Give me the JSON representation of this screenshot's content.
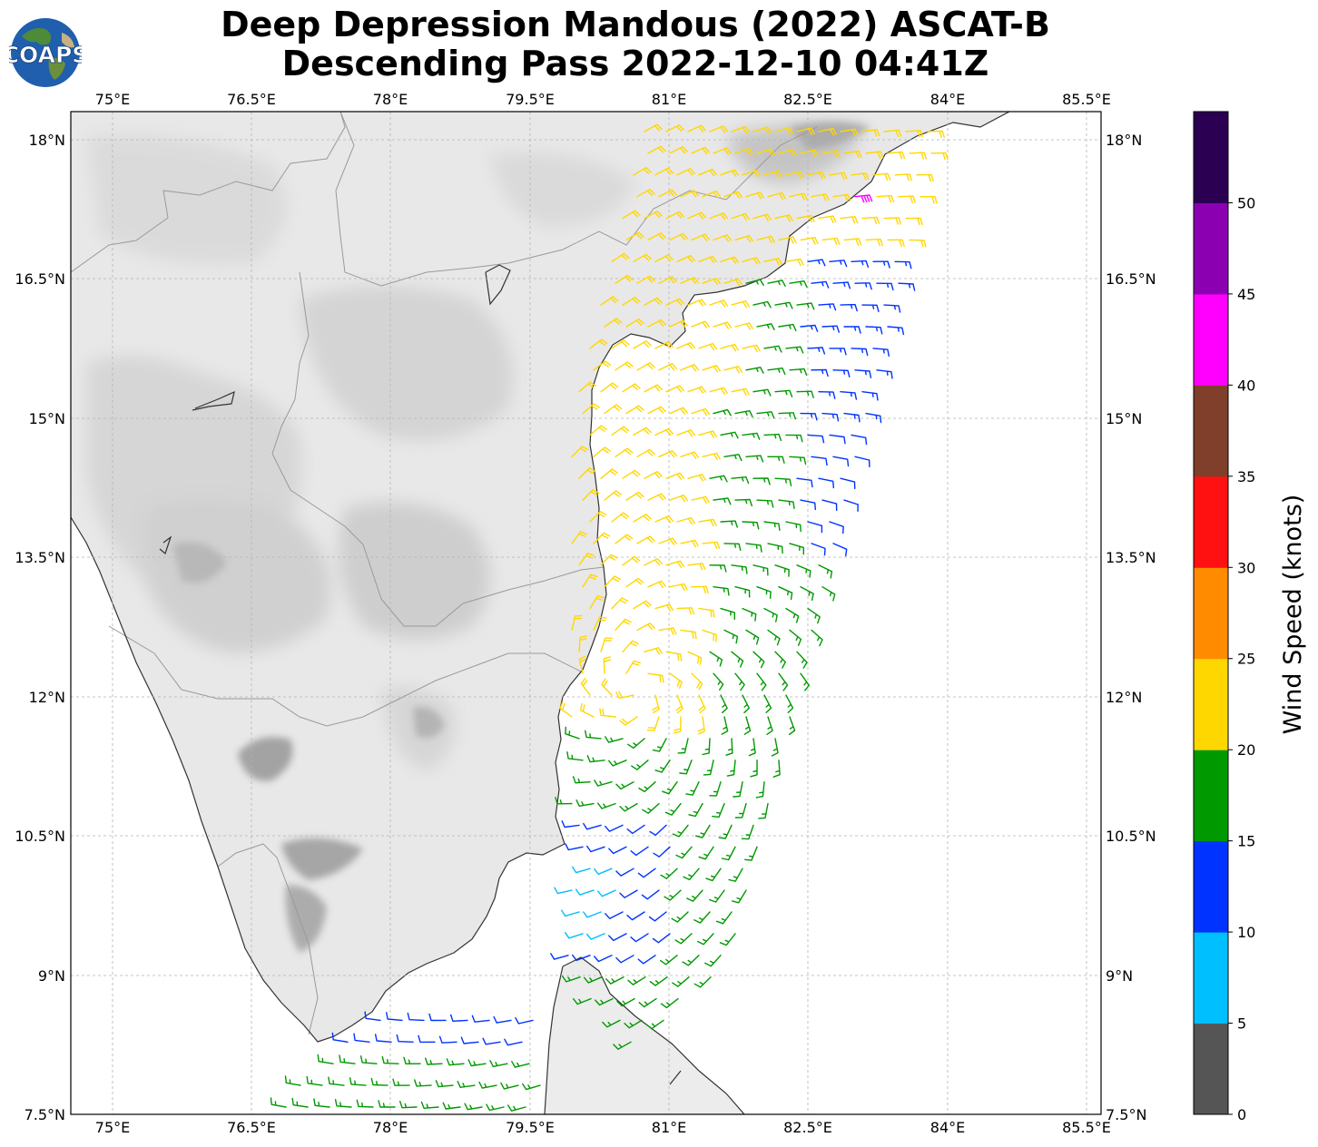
{
  "title": {
    "line1": "Deep Depression Mandous (2022) ASCAT-B",
    "line2": "Descending Pass 2022-12-10 04:41Z"
  },
  "logo": {
    "text": "COAPS"
  },
  "map": {
    "lon_ticks": [
      "75°E",
      "76.5°E",
      "78°E",
      "79.5°E",
      "81°E",
      "82.5°E",
      "84°E",
      "85.5°E"
    ],
    "lat_ticks": [
      "18°N",
      "16.5°N",
      "15°N",
      "13.5°N",
      "12°N",
      "10.5°N",
      "9°N",
      "7.5°N"
    ],
    "lon_range": [
      74.55,
      85.6
    ],
    "lat_range": [
      7.5,
      18.3
    ],
    "grid": true,
    "background": "grayscale topography"
  },
  "colorbar": {
    "label": "Wind Speed (knots)",
    "tick_labels": [
      "0",
      "5",
      "10",
      "15",
      "20",
      "25",
      "30",
      "35",
      "40",
      "45",
      "50"
    ],
    "colors": [
      "#555555",
      "#00bfff",
      "#0033ff",
      "#009900",
      "#ffd700",
      "#ff8c00",
      "#ff1111",
      "#7f3f2a",
      "#ff00ff",
      "#8b00b0",
      "#2b0052"
    ]
  }
}
